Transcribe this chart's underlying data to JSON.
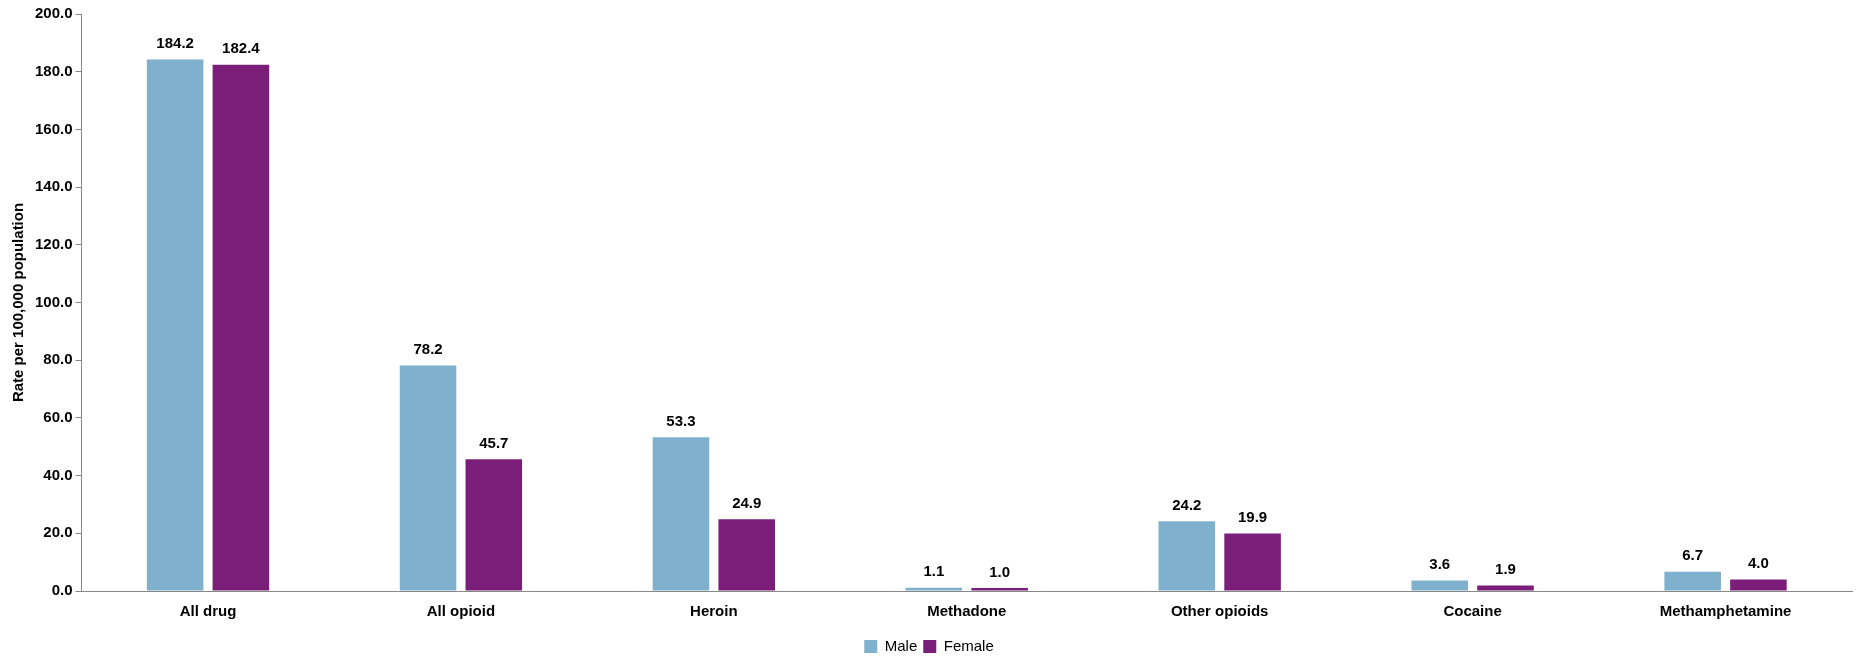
{
  "chart_data": {
    "type": "bar",
    "ylabel": "Rate per 100,000 population",
    "categories": [
      "All drug",
      "All opioid",
      "Heroin",
      "Methadone",
      "Other opioids",
      "Cocaine",
      "Methamphetamine"
    ],
    "series": [
      {
        "name": "Male",
        "color": "#7fb0cd",
        "values": [
          184.2,
          78.2,
          53.3,
          1.1,
          24.2,
          3.6,
          6.7
        ],
        "value_labels": [
          "184.2",
          "78.2",
          "53.3",
          "1.1",
          "24.2",
          "3.6",
          "6.7"
        ]
      },
      {
        "name": "Female",
        "color": "#7b1e79",
        "values": [
          182.4,
          45.7,
          24.9,
          1.0,
          19.9,
          1.9,
          4.0
        ],
        "value_labels": [
          "182.4",
          "45.7",
          "24.9",
          "1.0",
          "19.9",
          "1.9",
          "4.0"
        ]
      }
    ],
    "ylim": [
      0,
      200
    ],
    "yticks": [
      {
        "value": 0,
        "label": "0.0"
      },
      {
        "value": 20,
        "label": "20.0"
      },
      {
        "value": 40,
        "label": "40.0"
      },
      {
        "value": 60,
        "label": "60.0"
      },
      {
        "value": 80,
        "label": "80.0"
      },
      {
        "value": 100,
        "label": "100.0"
      },
      {
        "value": 120,
        "label": "120.0"
      },
      {
        "value": 140,
        "label": "140.0"
      },
      {
        "value": 160,
        "label": "160.0"
      },
      {
        "value": 180,
        "label": "180.0"
      },
      {
        "value": 200,
        "label": "200.0"
      }
    ],
    "grid": false,
    "legend": "bottom"
  }
}
